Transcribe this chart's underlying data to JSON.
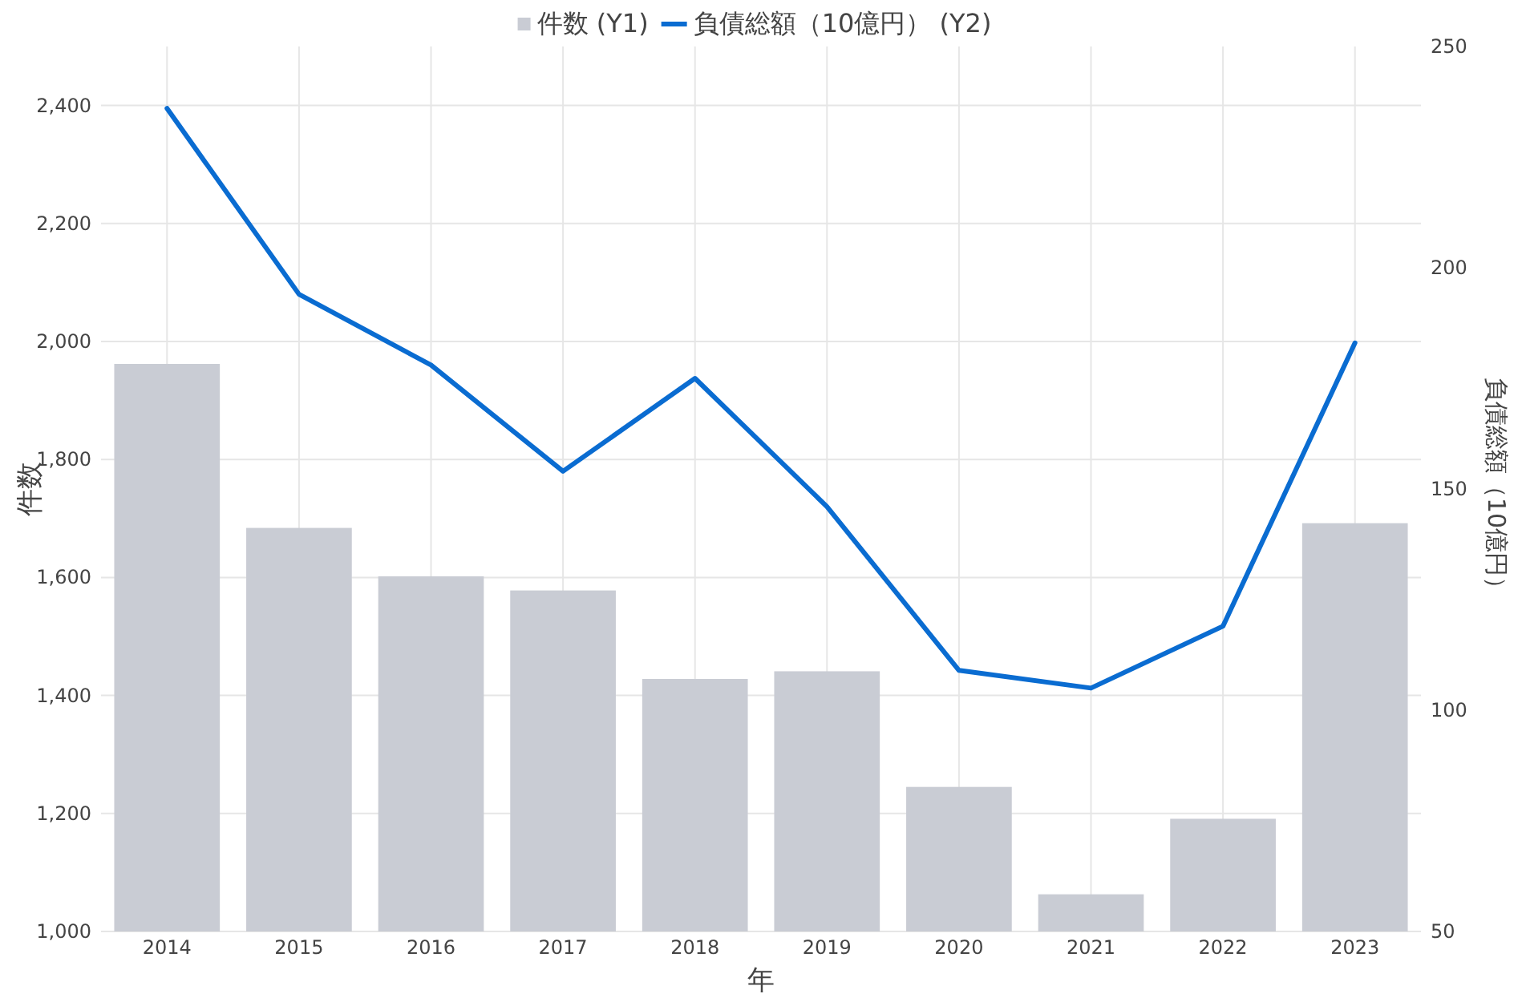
{
  "chart_data": {
    "type": "bar",
    "categories": [
      "2014",
      "2015",
      "2016",
      "2017",
      "2018",
      "2019",
      "2020",
      "2021",
      "2022",
      "2023"
    ],
    "xlabel": "年",
    "ylabel": "件数",
    "y2label": "負債総額（10億円）",
    "series": [
      {
        "name": "件数 (Y1)",
        "color": "#c9ccd4",
        "values": [
          1962,
          1684,
          1602,
          1578,
          1428,
          1441,
          1245,
          1063,
          1191,
          1692
        ]
      },
      {
        "name": "負債総額（10億円） (Y2)",
        "type": "line",
        "axis": "y2",
        "color": "#0a6cd1",
        "values": [
          236,
          194,
          178,
          154,
          175,
          146,
          109,
          105,
          119,
          183
        ]
      }
    ],
    "ylim": [
      1000,
      2500
    ],
    "yticks": [
      {
        "value": 1000,
        "label": "1,000"
      },
      {
        "value": 1200,
        "label": "1,200"
      },
      {
        "value": 1400,
        "label": "1,400"
      },
      {
        "value": 1600,
        "label": "1,600"
      },
      {
        "value": 1800,
        "label": "1,800"
      },
      {
        "value": 2000,
        "label": "2,000"
      },
      {
        "value": 2200,
        "label": "2,200"
      },
      {
        "value": 2400,
        "label": "2,400"
      }
    ],
    "y2lim": [
      50,
      250
    ],
    "y2ticks": [
      50,
      100,
      150,
      200,
      250
    ],
    "grid": true,
    "legend": "top",
    "line_style": "solid",
    "marker": "none"
  }
}
